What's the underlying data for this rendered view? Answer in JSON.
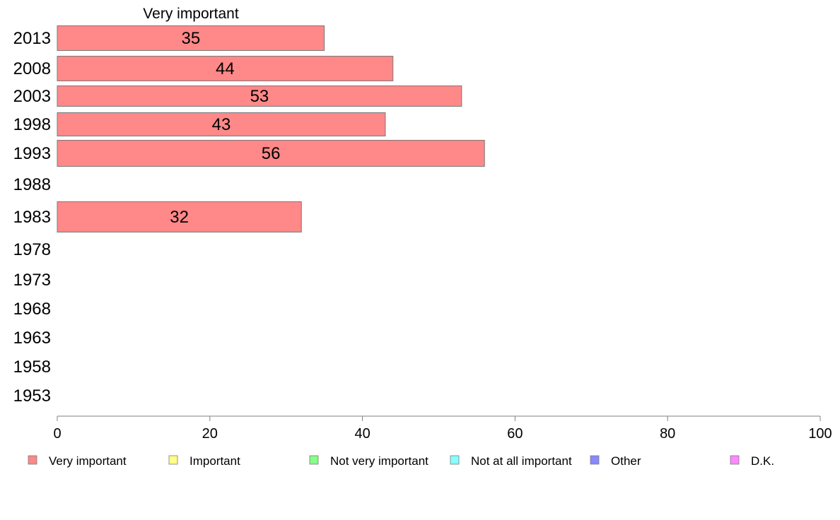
{
  "chart_data": {
    "type": "bar",
    "orientation": "horizontal",
    "header": "Very important",
    "categories": [
      "2013",
      "2008",
      "2003",
      "1998",
      "1993",
      "1988",
      "1983",
      "1978",
      "1973",
      "1968",
      "1963",
      "1958",
      "1953"
    ],
    "series": [
      {
        "name": "Very important",
        "color": "#ff8888",
        "values": [
          35,
          44,
          53,
          43,
          56,
          null,
          32,
          null,
          null,
          null,
          null,
          null,
          null
        ],
        "labels": [
          "35",
          "44",
          "53",
          "43",
          "56",
          "",
          "32",
          "",
          "",
          "",
          "",
          "",
          ""
        ]
      }
    ],
    "xlim": [
      0,
      100
    ],
    "xticks": [
      0,
      20,
      40,
      60,
      80,
      100
    ],
    "grid": false,
    "legend_position": "bottom",
    "legend": [
      {
        "label": "Very important",
        "color": "#ff8888"
      },
      {
        "label": "Important",
        "color": "#ffff88"
      },
      {
        "label": "Not very important",
        "color": "#88ff88"
      },
      {
        "label": "Not at all important",
        "color": "#88ffff"
      },
      {
        "label": "Other",
        "color": "#8888ff"
      },
      {
        "label": "D.K.",
        "color": "#ff88ff"
      }
    ]
  }
}
